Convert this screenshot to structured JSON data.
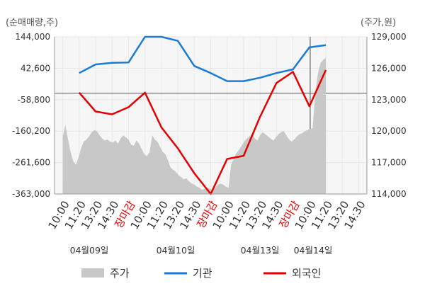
{
  "chart_data": {
    "type": "line",
    "left_axis_unit": "(순매매량,주)",
    "right_axis_unit": "(주가,원)",
    "left_ticks": [
      "144,000",
      "42,600",
      "-58,800",
      "-160,200",
      "-261,600",
      "-363,000"
    ],
    "right_ticks": [
      "129,000",
      "126,000",
      "123,000",
      "120,000",
      "117,000",
      "114,000"
    ],
    "ylim_left": [
      -363000,
      144000
    ],
    "ylim_right": [
      114000,
      129000
    ],
    "x_labels": [
      "10:00",
      "11:20",
      "13:20",
      "14:30",
      "장마감",
      "10:00",
      "11:20",
      "13:20",
      "14:30",
      "장마감",
      "10:00",
      "11:20",
      "13:20",
      "14:30",
      "장마감",
      "10:00",
      "11:20",
      "13:20",
      "14:30"
    ],
    "close_label": "장마감",
    "date_labels": [
      "04월09일",
      "04월10일",
      "04월13일",
      "04월14일"
    ],
    "legend": [
      {
        "name": "주가",
        "color": "#c8c8c8"
      },
      {
        "name": "기관",
        "color": "#1a7bd6"
      },
      {
        "name": "외국인",
        "color": "#e60000"
      }
    ],
    "series": [
      {
        "name": "기관",
        "axis": "left",
        "color": "#1a7bd6",
        "x": [
          1,
          2,
          3,
          4,
          5,
          6,
          7,
          8,
          9,
          10,
          11,
          12,
          13,
          14,
          15,
          16
        ],
        "values": [
          27000,
          55000,
          60000,
          61000,
          144000,
          144000,
          131000,
          50000,
          27000,
          1000,
          1000,
          12000,
          27000,
          39000,
          110000,
          117000
        ]
      },
      {
        "name": "외국인",
        "axis": "left",
        "color": "#e60000",
        "x": [
          1,
          2,
          3,
          4,
          5,
          6,
          7,
          8,
          9,
          10,
          11,
          12,
          13,
          14,
          15,
          16
        ],
        "values": [
          -36000,
          -97000,
          -106000,
          -83000,
          -36000,
          -148000,
          -216000,
          -296000,
          -363000,
          -250000,
          -240000,
          -114000,
          -5000,
          31000,
          -80000,
          37000
        ]
      },
      {
        "name": "주가",
        "axis": "right",
        "color": "#c8c8c8",
        "x_start": 0,
        "x_end": 16,
        "values": [
          119500,
          120600,
          119200,
          118000,
          117100,
          116800,
          117500,
          118400,
          119000,
          119200,
          119500,
          119900,
          120100,
          120000,
          119600,
          119300,
          119100,
          119200,
          119000,
          118900,
          119100,
          118800,
          119300,
          119600,
          119400,
          119200,
          118700,
          118600,
          119100,
          118800,
          118300,
          117800,
          117600,
          118000,
          119600,
          119200,
          119000,
          118500,
          118000,
          117800,
          117200,
          116500,
          116300,
          116100,
          115800,
          115600,
          115400,
          115500,
          115200,
          115000,
          114900,
          114700,
          114600,
          114400,
          114500,
          114600,
          114500,
          114400,
          114600,
          114900,
          115000,
          114900,
          114700,
          114600,
          116800,
          117400,
          117900,
          118200,
          118600,
          119000,
          119300,
          119500,
          119800,
          119300,
          119100,
          119600,
          119900,
          119700,
          119500,
          119300,
          119100,
          119400,
          119700,
          119900,
          120000,
          119600,
          119200,
          119000,
          119200,
          119500,
          119700,
          119800,
          120000,
          120100,
          120200,
          120300,
          123600,
          125500,
          126500,
          126800,
          127000
        ]
      }
    ]
  }
}
